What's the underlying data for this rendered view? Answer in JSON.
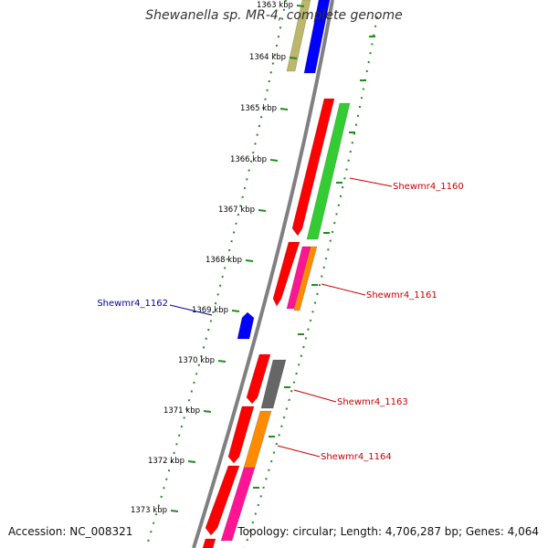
{
  "title": "Shewanella sp. MR-4, complete genome",
  "footer": {
    "accession": "Accession: NC_008321",
    "summary": "Topology: circular; Length: 4,706,287 bp; Genes: 4,064"
  },
  "ticks": [
    {
      "label": "1363 kbp",
      "kbp": 1363
    },
    {
      "label": "1364 kbp",
      "kbp": 1364
    },
    {
      "label": "1365 kbp",
      "kbp": 1365
    },
    {
      "label": "1366 kbp",
      "kbp": 1366
    },
    {
      "label": "1367 kbp",
      "kbp": 1367
    },
    {
      "label": "1368 kbp",
      "kbp": 1368
    },
    {
      "label": "1369 kbp",
      "kbp": 1369
    },
    {
      "label": "1370 kbp",
      "kbp": 1370
    },
    {
      "label": "1371 kbp",
      "kbp": 1371
    },
    {
      "label": "1372 kbp",
      "kbp": 1372
    },
    {
      "label": "1373 kbp",
      "kbp": 1373
    }
  ],
  "gene_labels": [
    {
      "text": "Shewmr4_1160",
      "color": "#cc0000",
      "strand": "forward"
    },
    {
      "text": "Shewmr4_1161",
      "color": "#cc0000",
      "strand": "forward"
    },
    {
      "text": "Shewmr4_1162",
      "color": "#0000aa",
      "strand": "reverse"
    },
    {
      "text": "Shewmr4_1163",
      "color": "#cc0000",
      "strand": "forward"
    },
    {
      "text": "Shewmr4_1164",
      "color": "#cc0000",
      "strand": "forward"
    }
  ],
  "colors": {
    "red": "#ff0000",
    "green": "#33cc33",
    "blue": "#0000ff",
    "khaki": "#bdb76b",
    "magenta": "#ff1493",
    "orange": "#ff8c00",
    "gray": "#666666",
    "backbone": "#808080",
    "tick": "#228b22"
  }
}
